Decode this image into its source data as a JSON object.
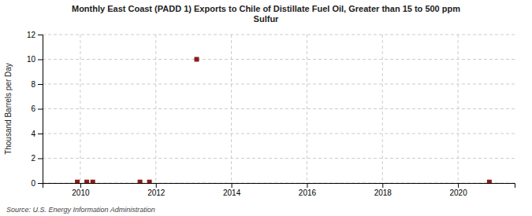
{
  "chart_data": {
    "type": "scatter",
    "title": "Monthly East Coast (PADD 1) Exports to Chile of Distillate Fuel Oil, Greater than 15 to 500 ppm\nSulfur",
    "y_label": "Thousand Barrels per Day",
    "annotation": "Source: U.S. Energy Information Administration",
    "x": [
      2009.92,
      2010.17,
      2010.33,
      2011.58,
      2011.83,
      2013.08,
      2020.83
    ],
    "values": [
      0.08,
      0.08,
      0.08,
      0.08,
      0.08,
      10.0,
      0.08
    ],
    "color": "#8b1a1a",
    "marker": "square",
    "xlim": [
      2009.0,
      2021.5
    ],
    "ylim": [
      0,
      12
    ],
    "xticks": [
      2010,
      2012,
      2014,
      2016,
      2018,
      2020
    ],
    "yticks": [
      0,
      2,
      4,
      6,
      8,
      10,
      12
    ],
    "grid": true
  }
}
